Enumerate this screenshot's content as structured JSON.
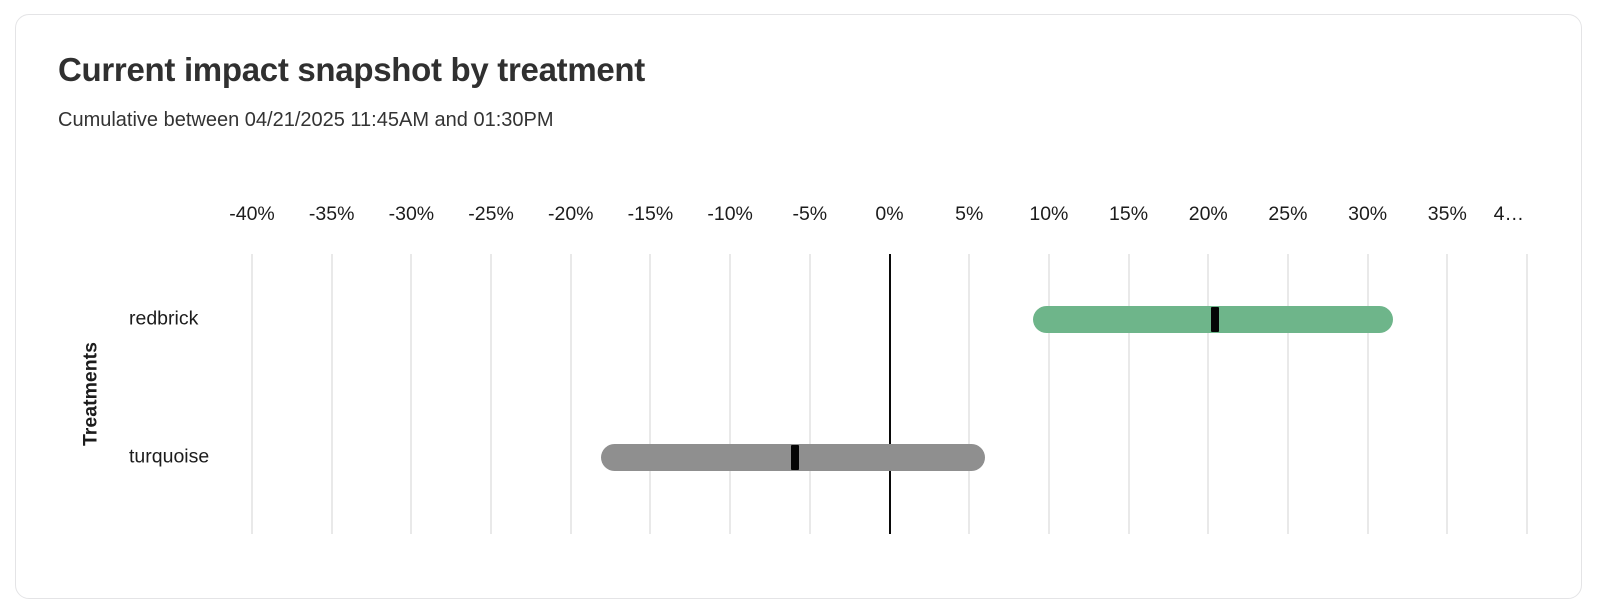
{
  "card": {
    "title": "Current impact snapshot by treatment",
    "subtitle": "Cumulative between 04/21/2025 11:45AM and 01:30PM"
  },
  "chart_data": {
    "type": "bar",
    "variant": "horizontal-range-bars-with-point-estimate",
    "title": "Current impact snapshot by treatment",
    "subtitle": "Cumulative between 04/21/2025 11:45AM and 01:30PM",
    "xlabel": "",
    "ylabel": "Treatments",
    "xlim": [
      -40,
      40
    ],
    "grid": true,
    "unit": "%",
    "x_ticks": [
      {
        "value": -40,
        "label": "-40%"
      },
      {
        "value": -35,
        "label": "-35%"
      },
      {
        "value": -30,
        "label": "-30%"
      },
      {
        "value": -25,
        "label": "-25%"
      },
      {
        "value": -20,
        "label": "-20%"
      },
      {
        "value": -15,
        "label": "-15%"
      },
      {
        "value": -10,
        "label": "-10%"
      },
      {
        "value": -5,
        "label": "-5%"
      },
      {
        "value": 0,
        "label": "0%"
      },
      {
        "value": 5,
        "label": "5%"
      },
      {
        "value": 10,
        "label": "10%"
      },
      {
        "value": 15,
        "label": "15%"
      },
      {
        "value": 20,
        "label": "20%"
      },
      {
        "value": 25,
        "label": "25%"
      },
      {
        "value": 30,
        "label": "30%"
      },
      {
        "value": 35,
        "label": "35%"
      },
      {
        "value": 40,
        "label": "4…",
        "truncated": true
      }
    ],
    "categories": [
      "redbrick",
      "turquoise"
    ],
    "series": [
      {
        "name": "redbrick",
        "range_low": 9.0,
        "range_high": 31.6,
        "point": 20.4,
        "color": "#6eb58a"
      },
      {
        "name": "turquoise",
        "range_low": -18.1,
        "range_high": 6.0,
        "point": -5.9,
        "color": "#8f8f8f"
      }
    ],
    "marker_color": "#050505",
    "zero_line_color": "#0a0a0a",
    "gridline_color": "#e9e9e9"
  }
}
